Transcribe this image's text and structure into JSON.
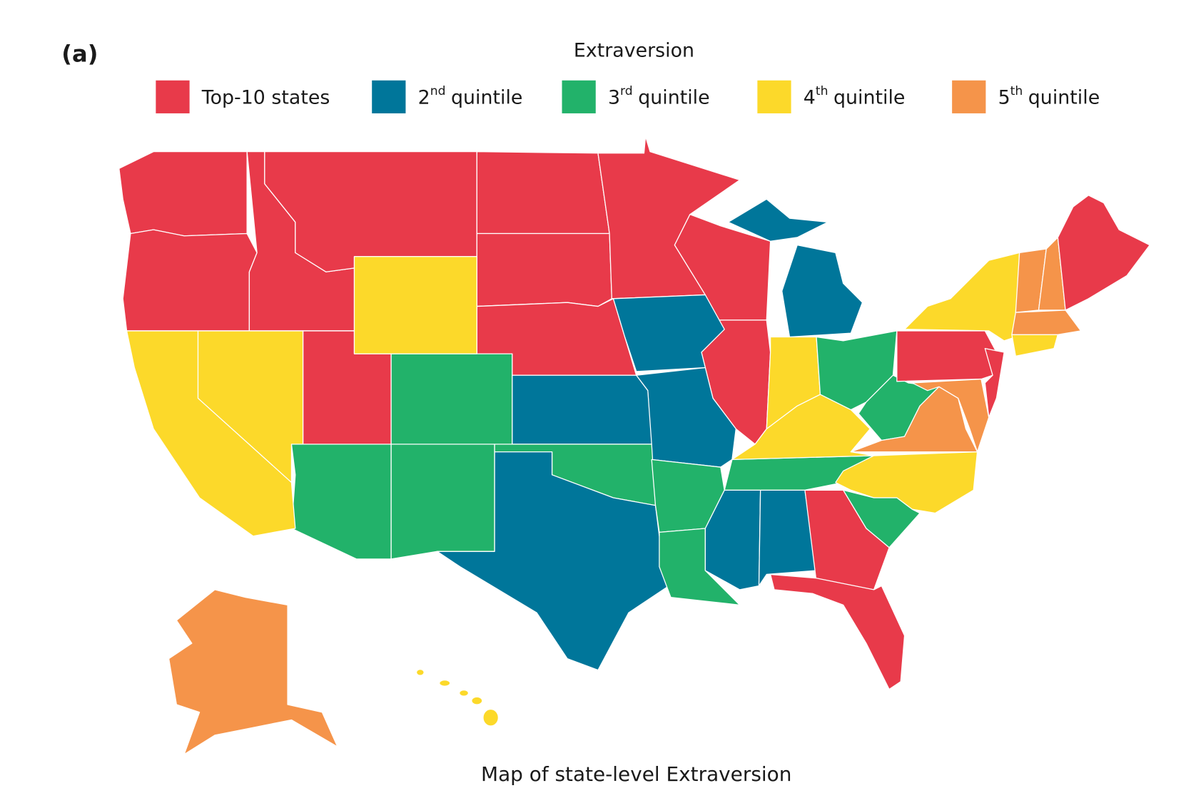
{
  "panel_label": "(a)",
  "title": "Extraversion",
  "legend": [
    {
      "color": "#e83a4a",
      "label": "Top-10 states"
    },
    {
      "color": "#00769a",
      "number": "2",
      "sup": "nd",
      "label": "quintile"
    },
    {
      "color": "#22b26a",
      "number": "3",
      "sup": "rd",
      "label": "quintile"
    },
    {
      "color": "#fcd92a",
      "number": "4",
      "sup": "th",
      "label": "quintile"
    },
    {
      "color": "#f5944a",
      "number": "5",
      "sup": "th",
      "label": "quintile"
    }
  ],
  "caption": "Map of state-level Extraversion"
}
